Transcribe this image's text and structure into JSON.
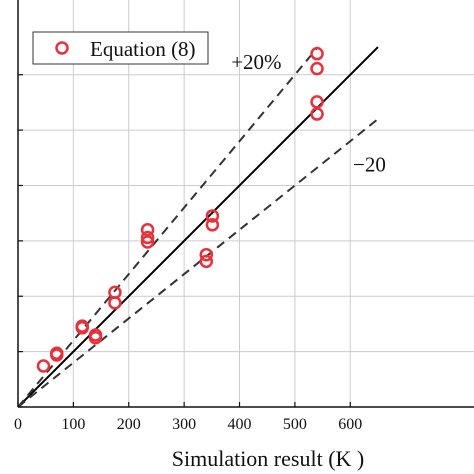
{
  "chart_data": {
    "type": "scatter",
    "title": "",
    "xlabel": "Simulation result (K )",
    "ylabel": "",
    "xlim": [
      0,
      650
    ],
    "ylim": [
      0,
      650
    ],
    "xticks": [
      0,
      100,
      200,
      300,
      400,
      500,
      600
    ],
    "yticks": [
      0,
      100,
      200,
      300,
      400,
      500,
      600
    ],
    "grid": true,
    "legend_position": "top-left",
    "colors": {
      "marker": "#e8313a",
      "ideal_line": "#000000",
      "bound_lines": "#333333",
      "grid": "#cccccc"
    },
    "series": [
      {
        "name": "Equation (8)",
        "marker": "open-circle",
        "points": [
          {
            "x": 46,
            "y": 74
          },
          {
            "x": 70,
            "y": 94
          },
          {
            "x": 70,
            "y": 97
          },
          {
            "x": 116,
            "y": 143
          },
          {
            "x": 116,
            "y": 146
          },
          {
            "x": 140,
            "y": 125
          },
          {
            "x": 140,
            "y": 130
          },
          {
            "x": 175,
            "y": 188
          },
          {
            "x": 175,
            "y": 207
          },
          {
            "x": 234,
            "y": 298
          },
          {
            "x": 234,
            "y": 306
          },
          {
            "x": 234,
            "y": 320
          },
          {
            "x": 340,
            "y": 263
          },
          {
            "x": 340,
            "y": 275
          },
          {
            "x": 351,
            "y": 329
          },
          {
            "x": 351,
            "y": 345
          },
          {
            "x": 540,
            "y": 529
          },
          {
            "x": 540,
            "y": 551
          },
          {
            "x": 540,
            "y": 611
          },
          {
            "x": 540,
            "y": 638
          }
        ]
      }
    ],
    "reference_lines": [
      {
        "slope": 1.0,
        "style": "solid"
      },
      {
        "slope": 1.2,
        "style": "dashed"
      },
      {
        "slope": 0.8,
        "style": "dashed"
      }
    ],
    "annotations": [
      {
        "text": "+20%",
        "x": 385,
        "y": 610
      },
      {
        "text": "−20",
        "x": 605,
        "y": 425
      }
    ]
  }
}
